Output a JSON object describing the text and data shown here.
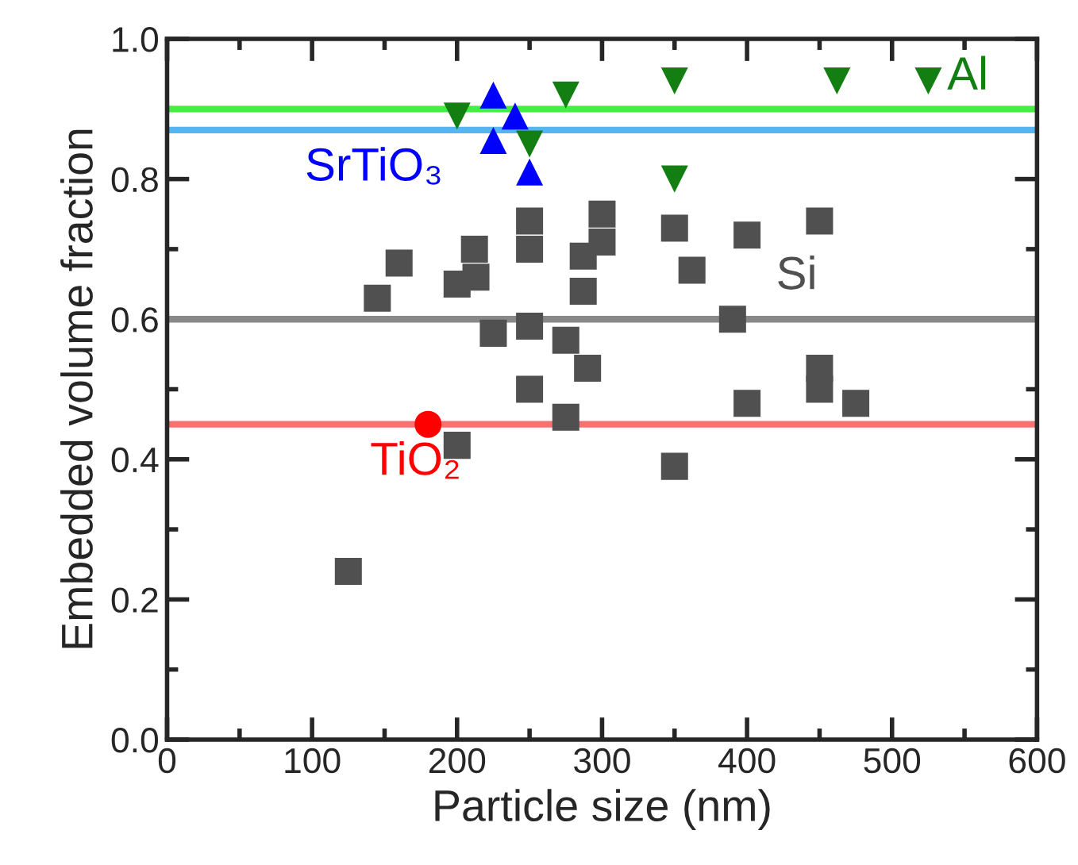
{
  "chart_data": {
    "type": "scatter",
    "xlabel": "Particle size (nm)",
    "ylabel": "Embedded volume fraction",
    "xlim": [
      0,
      600
    ],
    "xticks": [
      0,
      100,
      200,
      300,
      400,
      500,
      600
    ],
    "ylim": [
      0,
      1.0
    ],
    "yticks": [
      {
        "value": 0,
        "label": "0.0"
      },
      0.2,
      0.4,
      0.6,
      0.8,
      {
        "value": 1.0,
        "label": "1.0"
      }
    ],
    "grid": false,
    "legend": false,
    "series": [
      {
        "name": "Si",
        "color": "#505050",
        "marker": "square",
        "x": [
          125,
          145,
          160,
          200,
          200,
          212,
          213,
          225,
          250,
          250,
          250,
          250,
          275,
          275,
          287,
          287,
          290,
          300,
          300,
          350,
          350,
          362,
          390,
          400,
          400,
          450,
          450,
          450,
          475
        ],
        "values": [
          0.24,
          0.63,
          0.68,
          0.65,
          0.42,
          0.7,
          0.66,
          0.58,
          0.74,
          0.7,
          0.59,
          0.5,
          0.57,
          0.46,
          0.69,
          0.64,
          0.53,
          0.75,
          0.71,
          0.73,
          0.39,
          0.67,
          0.6,
          0.72,
          0.48,
          0.74,
          0.53,
          0.5,
          0.48
        ]
      },
      {
        "name": "Al",
        "color": "#137f13",
        "marker": "triangle_down",
        "x": [
          200,
          250,
          275,
          350,
          350,
          462,
          525
        ],
        "values": [
          0.89,
          0.85,
          0.92,
          0.94,
          0.8,
          0.94,
          0.94
        ]
      },
      {
        "name": "SrTiO₃",
        "color": "#0000ff",
        "marker": "triangle",
        "x": [
          225,
          240,
          225,
          250
        ],
        "values": [
          0.92,
          0.89,
          0.855,
          0.81
        ]
      },
      {
        "name": "TiO₂",
        "color": "#ff0000",
        "marker": "circle",
        "x": [
          180
        ],
        "values": [
          0.45
        ]
      }
    ],
    "ref_lines": [
      {
        "axis": "y",
        "value": 0.9,
        "color": "#44ee44"
      },
      {
        "axis": "y",
        "value": 0.87,
        "color": "#55b5f0"
      },
      {
        "axis": "y",
        "value": 0.6,
        "color": "#888888"
      },
      {
        "axis": "y",
        "value": 0.45,
        "color": "#f87070"
      }
    ]
  }
}
